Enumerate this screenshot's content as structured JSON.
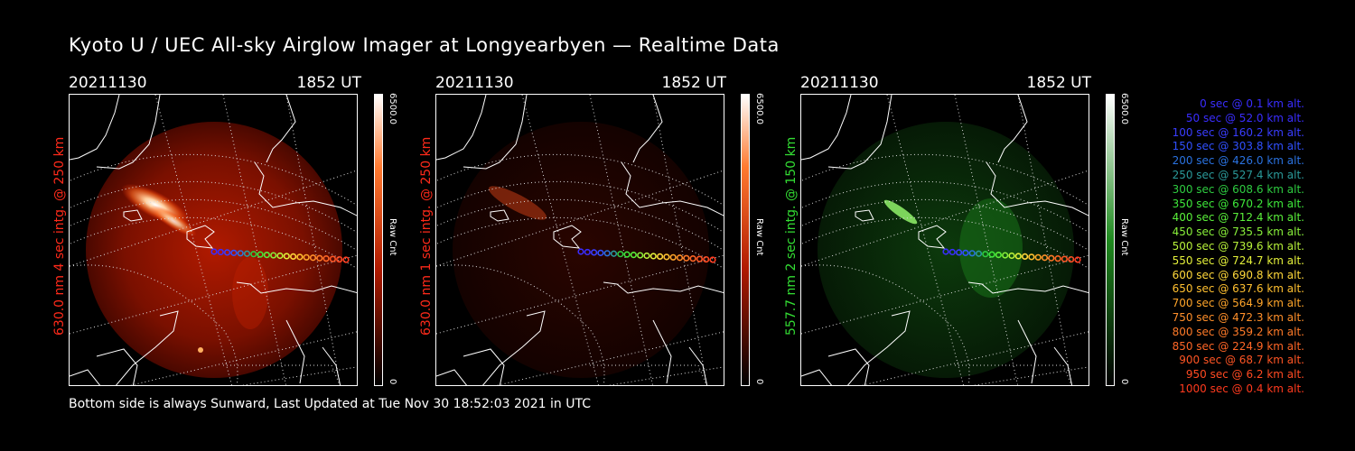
{
  "title": "Kyoto U / UEC All-sky Airglow Imager at Longyearbyen — Realtime Data",
  "footer": "Bottom side is always Sunward, Last Updated at Tue Nov 30 18:52:03 2021 in UTC",
  "panels": [
    {
      "date": "20211130",
      "time": "1852 UT",
      "ylabel": "630.0 nm  4 sec intg. @ 250 km",
      "ylabel_color": "#ff2a1a",
      "cbar_max": "6500.0",
      "cbar_min": "0",
      "cbar_label": "Raw Cnt",
      "theme": "red"
    },
    {
      "date": "20211130",
      "time": "1852 UT",
      "ylabel": "630.0 nm  1 sec intg. @ 250 km",
      "ylabel_color": "#ff2a1a",
      "cbar_max": "6500.0",
      "cbar_min": "0",
      "cbar_label": "Raw Cnt",
      "theme": "dimred"
    },
    {
      "date": "20211130",
      "time": "1852 UT",
      "ylabel": "557.7 nm  2 sec intg. @ 150 km",
      "ylabel_color": "#33dd33",
      "cbar_max": "6500.0",
      "cbar_min": "0",
      "cbar_label": "Raw Cnt",
      "theme": "green"
    }
  ],
  "legend": [
    {
      "text": "0 sec @    0.1 km alt.",
      "color": "#3a2dff"
    },
    {
      "text": "50 sec @   52.0 km alt.",
      "color": "#3a2dff"
    },
    {
      "text": "100 sec @  160.2 km alt.",
      "color": "#3a3dff"
    },
    {
      "text": "150 sec @  303.8 km alt.",
      "color": "#3050ff"
    },
    {
      "text": "200 sec @  426.0 km alt.",
      "color": "#2a72e0"
    },
    {
      "text": "250 sec @  527.4 km alt.",
      "color": "#2a9a9a"
    },
    {
      "text": "300 sec @  608.6 km alt.",
      "color": "#2ecc40"
    },
    {
      "text": "350 sec @  670.2 km alt.",
      "color": "#3ee83a"
    },
    {
      "text": "400 sec @  712.4 km alt.",
      "color": "#5af03a"
    },
    {
      "text": "450 sec @  735.5 km alt.",
      "color": "#88f03a"
    },
    {
      "text": "500 sec @  739.6 km alt.",
      "color": "#b8f23a"
    },
    {
      "text": "550 sec @  724.7 km alt.",
      "color": "#e4f03a"
    },
    {
      "text": "600 sec @  690.8 km alt.",
      "color": "#ffd83a"
    },
    {
      "text": "650 sec @  637.6 km alt.",
      "color": "#ffc030"
    },
    {
      "text": "700 sec @  564.9 km alt.",
      "color": "#ffa52a"
    },
    {
      "text": "750 sec @  472.3 km alt.",
      "color": "#ff8f2a"
    },
    {
      "text": "800 sec @  359.2 km alt.",
      "color": "#ff7a28"
    },
    {
      "text": "850 sec @  224.9 km alt.",
      "color": "#ff6626"
    },
    {
      "text": "900 sec @   68.7 km alt.",
      "color": "#ff5524"
    },
    {
      "text": "950 sec @    6.2 km alt.",
      "color": "#ff4a22"
    },
    {
      "text": "1000 sec @    0.4 km alt.",
      "color": "#ff3a1e"
    }
  ]
}
